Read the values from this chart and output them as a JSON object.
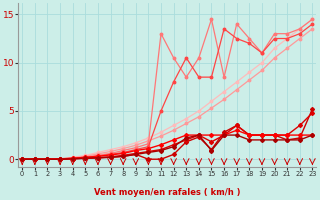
{
  "bg_color": "#cceee8",
  "grid_color": "#aadddd",
  "xlabel": "Vent moyen/en rafales ( km/h )",
  "xlim": [
    -0.3,
    23.3
  ],
  "ylim": [
    -0.8,
    16.2
  ],
  "yticks": [
    0,
    5,
    10,
    15
  ],
  "xticks": [
    0,
    1,
    2,
    3,
    4,
    5,
    6,
    7,
    8,
    9,
    10,
    11,
    12,
    13,
    14,
    15,
    16,
    17,
    18,
    19,
    20,
    21,
    22,
    23
  ],
  "series": [
    {
      "color": "#ffbbbb",
      "lw": 0.9,
      "marker": "o",
      "ms": 1.8,
      "x": [
        0,
        1,
        2,
        3,
        4,
        5,
        6,
        7,
        8,
        9,
        10,
        11,
        12,
        13,
        14,
        15,
        16,
        17,
        18,
        19,
        20,
        21,
        22,
        23
      ],
      "y": [
        0,
        0,
        0,
        0,
        0.2,
        0.4,
        0.7,
        1.0,
        1.3,
        1.7,
        2.2,
        2.8,
        3.5,
        4.2,
        5.0,
        6.0,
        7.0,
        8.0,
        9.0,
        10.0,
        11.5,
        12.5,
        13.5,
        14.5
      ]
    },
    {
      "color": "#ff9999",
      "lw": 0.9,
      "marker": "o",
      "ms": 1.8,
      "x": [
        0,
        1,
        2,
        3,
        4,
        5,
        6,
        7,
        8,
        9,
        10,
        11,
        12,
        13,
        14,
        15,
        16,
        17,
        18,
        19,
        20,
        21,
        22,
        23
      ],
      "y": [
        0,
        0,
        0,
        0,
        0.15,
        0.3,
        0.55,
        0.8,
        1.1,
        1.45,
        1.9,
        2.4,
        3.0,
        3.7,
        4.4,
        5.3,
        6.2,
        7.2,
        8.2,
        9.2,
        10.5,
        11.5,
        12.5,
        13.5
      ]
    },
    {
      "comment": "darker pink with jagged spike at x=11 ~13, x=15 ~14.5, x=16 ~8.5, x=17 ~14",
      "color": "#ff7777",
      "lw": 0.9,
      "marker": "o",
      "ms": 1.8,
      "x": [
        0,
        1,
        2,
        3,
        4,
        5,
        6,
        7,
        8,
        9,
        10,
        11,
        12,
        13,
        14,
        15,
        16,
        17,
        18,
        19,
        20,
        21,
        22,
        23
      ],
      "y": [
        0,
        0,
        0,
        0,
        0.1,
        0.2,
        0.4,
        0.6,
        0.9,
        1.2,
        1.6,
        13.0,
        10.5,
        8.5,
        10.5,
        14.5,
        8.5,
        14.0,
        12.5,
        11.0,
        13.0,
        13.0,
        13.5,
        14.5
      ]
    },
    {
      "color": "#ff4444",
      "lw": 0.9,
      "marker": "o",
      "ms": 1.8,
      "x": [
        0,
        1,
        2,
        3,
        4,
        5,
        6,
        7,
        8,
        9,
        10,
        11,
        12,
        13,
        14,
        15,
        16,
        17,
        18,
        19,
        20,
        21,
        22,
        23
      ],
      "y": [
        0,
        0,
        0,
        0,
        0.1,
        0.2,
        0.3,
        0.5,
        0.7,
        1.0,
        1.3,
        5.0,
        8.0,
        10.5,
        8.5,
        8.5,
        13.5,
        12.5,
        12.0,
        11.0,
        12.5,
        12.5,
        13.0,
        14.0
      ]
    },
    {
      "color": "#cc0000",
      "lw": 1.0,
      "marker": "D",
      "ms": 2.0,
      "x": [
        0,
        1,
        2,
        3,
        4,
        5,
        6,
        7,
        8,
        9,
        10,
        11,
        12,
        13,
        14,
        15,
        16,
        17,
        18,
        19,
        20,
        21,
        22,
        23
      ],
      "y": [
        0,
        0,
        0,
        0,
        0.05,
        0.1,
        0.15,
        0.2,
        0.3,
        0.5,
        0.0,
        0.0,
        0.5,
        1.8,
        2.3,
        1.0,
        2.8,
        3.5,
        2.5,
        2.5,
        2.5,
        2.0,
        2.2,
        5.2
      ]
    },
    {
      "color": "#dd0000",
      "lw": 1.0,
      "marker": "D",
      "ms": 2.0,
      "x": [
        0,
        1,
        2,
        3,
        4,
        5,
        6,
        7,
        8,
        9,
        10,
        11,
        12,
        13,
        14,
        15,
        16,
        17,
        18,
        19,
        20,
        21,
        22,
        23
      ],
      "y": [
        0,
        0,
        0,
        0,
        0.05,
        0.1,
        0.15,
        0.25,
        0.4,
        0.6,
        0.8,
        1.0,
        1.5,
        2.0,
        2.5,
        1.8,
        2.5,
        3.5,
        2.5,
        2.5,
        2.5,
        2.5,
        3.5,
        4.8
      ]
    },
    {
      "color": "#ff0000",
      "lw": 1.0,
      "marker": "D",
      "ms": 2.0,
      "x": [
        0,
        1,
        2,
        3,
        4,
        5,
        6,
        7,
        8,
        9,
        10,
        11,
        12,
        13,
        14,
        15,
        16,
        17,
        18,
        19,
        20,
        21,
        22,
        23
      ],
      "y": [
        0,
        0,
        0,
        0.05,
        0.1,
        0.2,
        0.3,
        0.45,
        0.6,
        0.9,
        1.1,
        1.5,
        2.0,
        2.5,
        2.5,
        2.5,
        2.5,
        3.0,
        2.5,
        2.5,
        2.5,
        2.5,
        2.5,
        2.5
      ]
    },
    {
      "color": "#aa0000",
      "lw": 1.0,
      "marker": "D",
      "ms": 2.0,
      "x": [
        0,
        1,
        2,
        3,
        4,
        5,
        6,
        7,
        8,
        9,
        10,
        11,
        12,
        13,
        14,
        15,
        16,
        17,
        18,
        19,
        20,
        21,
        22,
        23
      ],
      "y": [
        0,
        0,
        0,
        0,
        0.05,
        0.1,
        0.15,
        0.2,
        0.3,
        0.5,
        0.7,
        0.9,
        1.3,
        2.2,
        2.5,
        0.9,
        2.5,
        2.5,
        2.0,
        2.0,
        2.0,
        2.0,
        2.0,
        2.5
      ]
    }
  ]
}
